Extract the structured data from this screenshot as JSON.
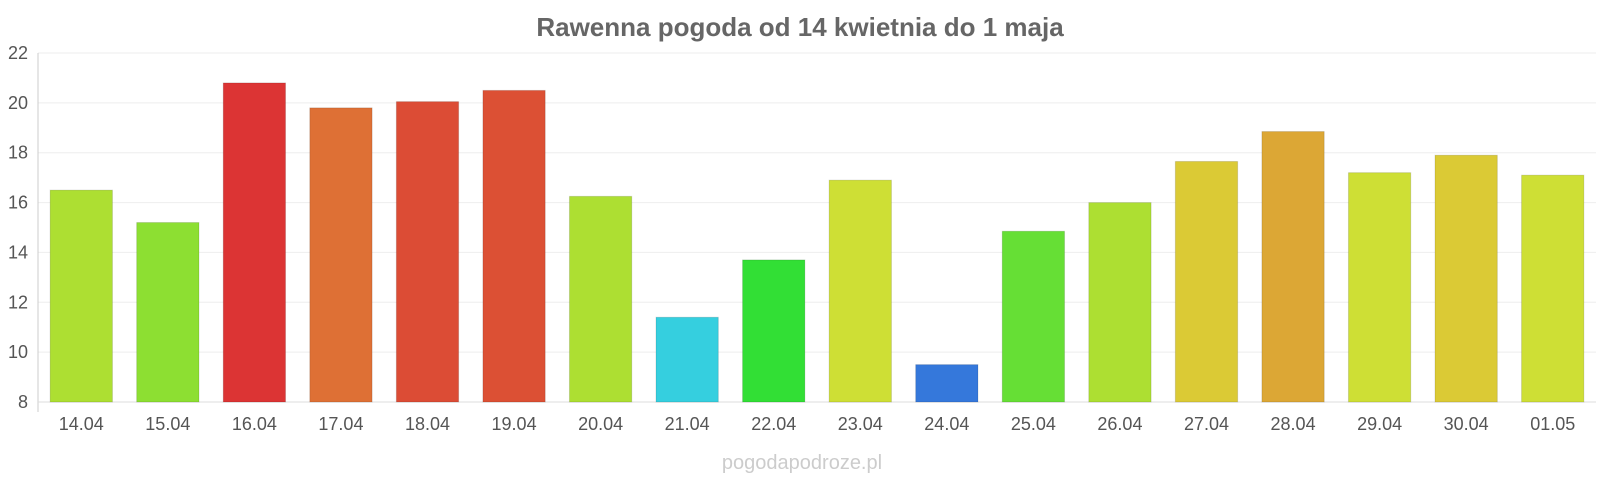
{
  "chart_data": {
    "type": "bar",
    "title": "Rawenna pogoda od 14 kwietnia do 1 maja",
    "xlabel": "",
    "ylabel": "",
    "categories": [
      "14.04",
      "15.04",
      "16.04",
      "17.04",
      "18.04",
      "19.04",
      "20.04",
      "21.04",
      "22.04",
      "23.04",
      "24.04",
      "25.04",
      "26.04",
      "27.04",
      "28.04",
      "29.04",
      "30.04",
      "01.05"
    ],
    "values": [
      16.5,
      15.2,
      20.8,
      19.8,
      20.05,
      20.5,
      16.25,
      11.4,
      13.7,
      16.9,
      9.5,
      14.85,
      16.0,
      17.65,
      18.85,
      17.2,
      17.9,
      17.1
    ],
    "colors": [
      "#addf32",
      "#8ddf32",
      "#dc3434",
      "#de7035",
      "#dc4c35",
      "#dc5034",
      "#addf32",
      "#35cfdf",
      "#32df35",
      "#cedf35",
      "#3578db",
      "#66df35",
      "#addf32",
      "#dbca35",
      "#dca735",
      "#cedf35",
      "#dbca35",
      "#cedf35"
    ],
    "ylim": [
      8,
      22
    ],
    "yticks": [
      8,
      10,
      12,
      14,
      16,
      18,
      20,
      22
    ],
    "grid": true,
    "legend": "none"
  },
  "watermark": "pogodapodroze.pl"
}
